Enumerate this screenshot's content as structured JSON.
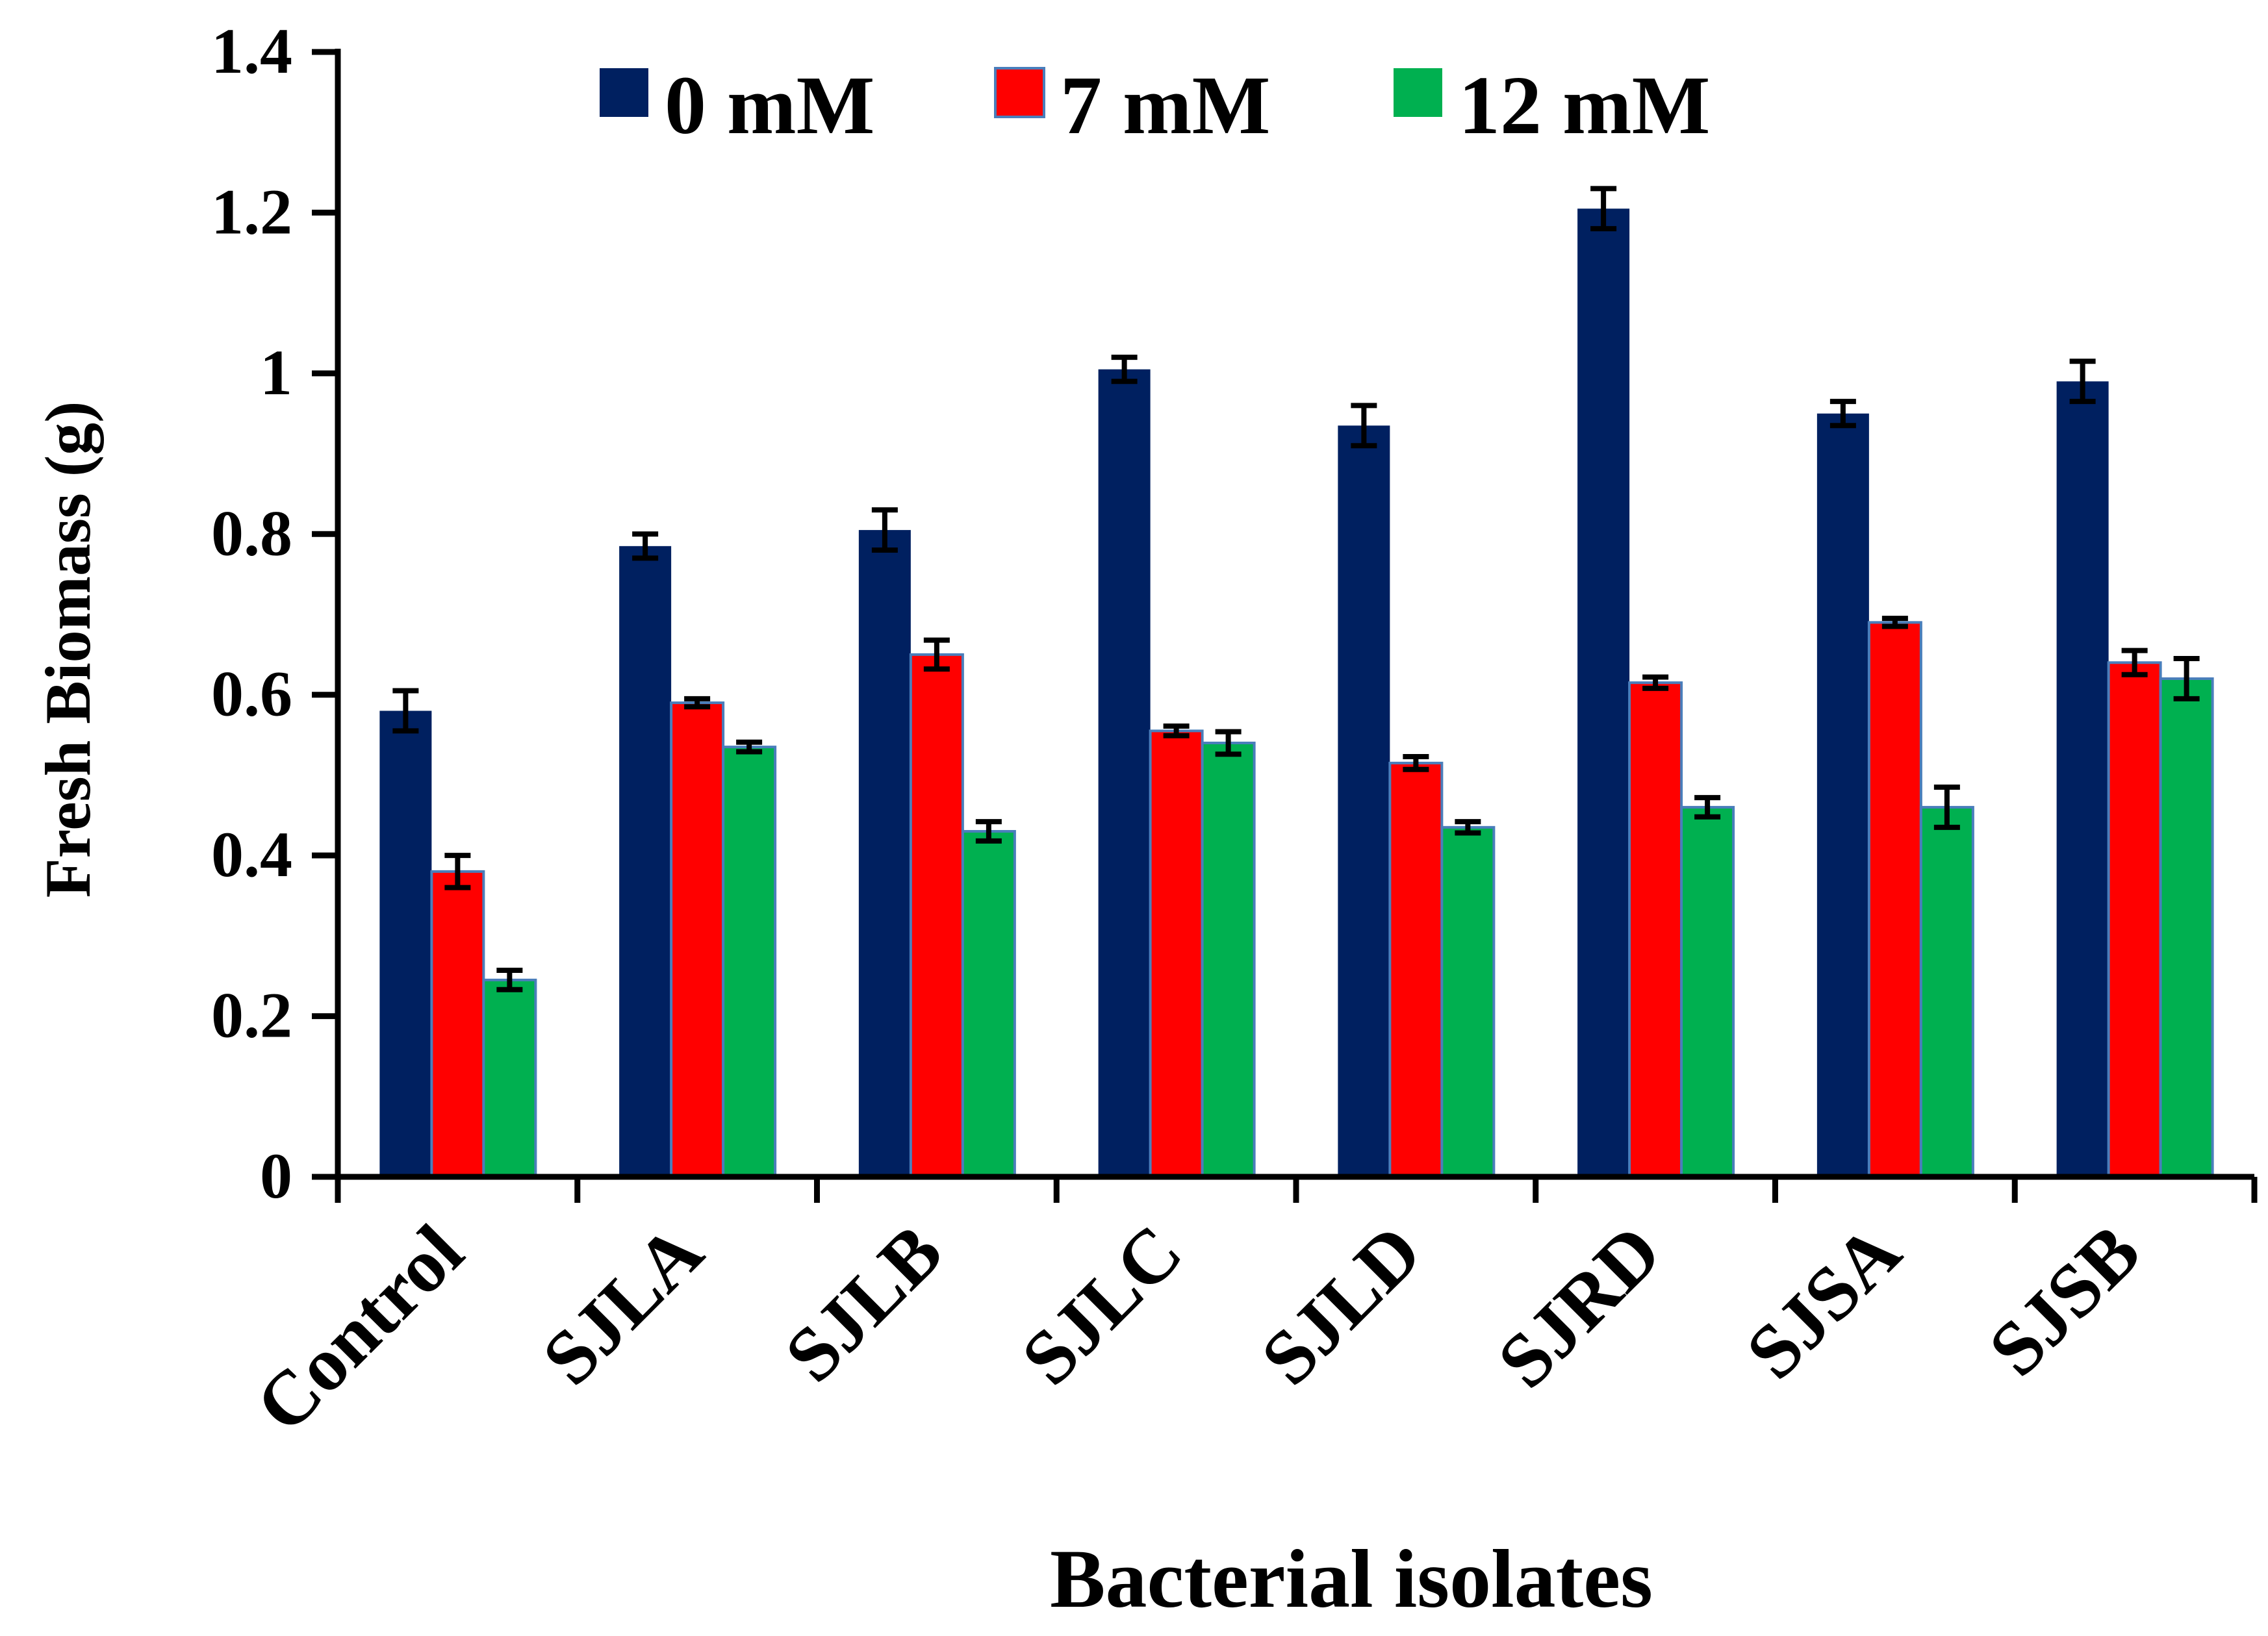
{
  "chart_data": {
    "type": "bar",
    "title": "",
    "xlabel": "Bacterial isolates",
    "ylabel": "Fresh Biomass (g)",
    "ylim": [
      0,
      1.4
    ],
    "yticks": [
      0,
      0.2,
      0.4,
      0.6,
      0.8,
      1,
      1.2,
      1.4
    ],
    "ytick_labels": [
      "0",
      "0.2",
      "0.4",
      "0.6",
      "0.8",
      "1",
      "1.2",
      "1.4"
    ],
    "grid": false,
    "legend_position": "top-center",
    "categories": [
      "Control",
      "SJLA",
      "SJLB",
      "SJLC",
      "SJLD",
      "SJRD",
      "SJSA",
      "SJSB"
    ],
    "series": [
      {
        "name": "0 mM",
        "color": "#002060",
        "values": [
          0.58,
          0.785,
          0.805,
          1.005,
          0.935,
          1.205,
          0.95,
          0.99
        ],
        "errors": [
          0.025,
          0.015,
          0.025,
          0.015,
          0.025,
          0.025,
          0.015,
          0.025
        ]
      },
      {
        "name": "7 mM",
        "color": "#ff0000",
        "values": [
          0.38,
          0.59,
          0.65,
          0.555,
          0.515,
          0.615,
          0.69,
          0.64
        ],
        "errors": [
          0.02,
          0.005,
          0.018,
          0.006,
          0.008,
          0.007,
          0.005,
          0.015
        ]
      },
      {
        "name": "12 mM",
        "color": "#00b050",
        "values": [
          0.245,
          0.535,
          0.43,
          0.54,
          0.435,
          0.46,
          0.46,
          0.62
        ],
        "errors": [
          0.012,
          0.006,
          0.012,
          0.014,
          0.007,
          0.012,
          0.025,
          0.025
        ]
      }
    ]
  }
}
